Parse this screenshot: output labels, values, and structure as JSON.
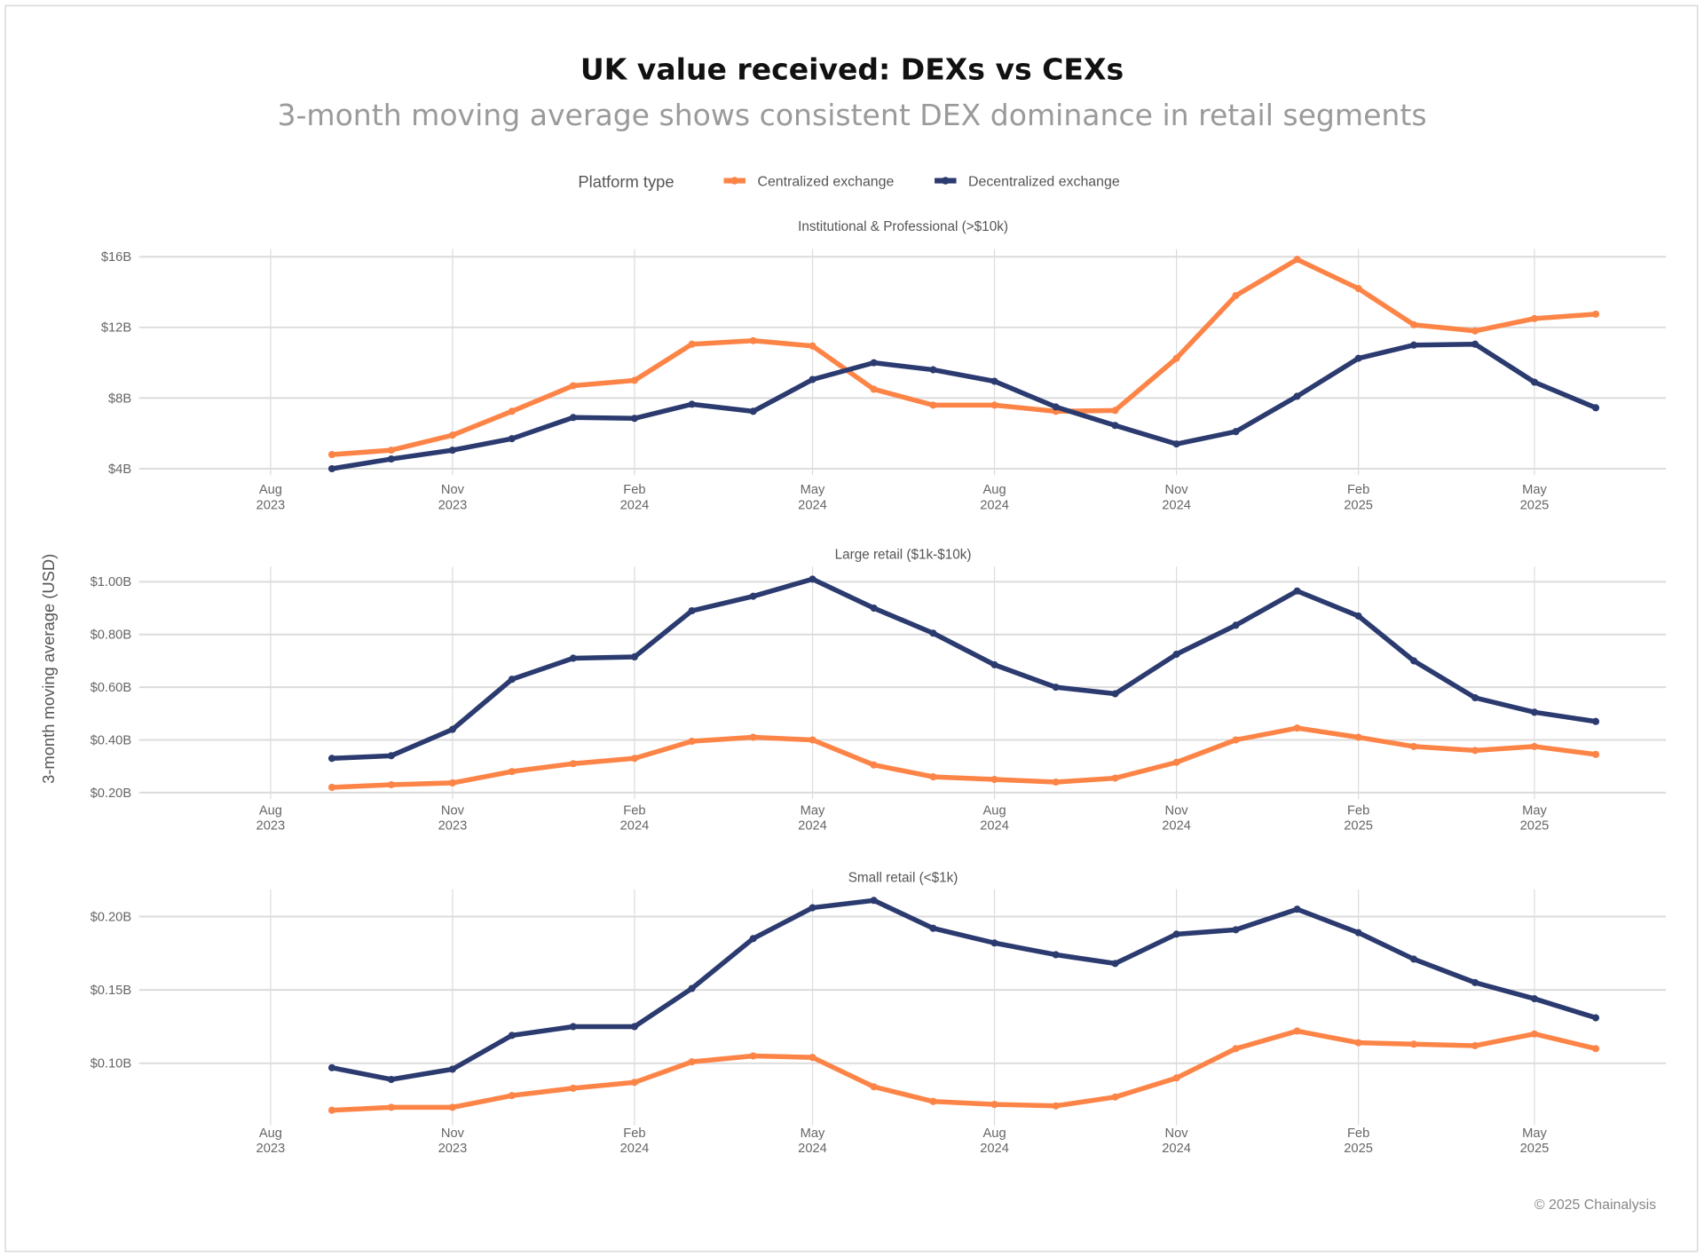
{
  "header": {
    "title": "UK value received: DEXs vs CEXs",
    "subtitle": "3-month moving average shows consistent DEX dominance in retail segments"
  },
  "legend": {
    "title": "Platform type",
    "items": [
      {
        "label": "Centralized exchange",
        "color": "#fd8447"
      },
      {
        "label": "Decentralized exchange",
        "color": "#2b3a6f"
      }
    ]
  },
  "ylabel": "3-month moving average (USD)",
  "credit": "© 2025 Chainalysis",
  "x_tick_labels": [
    {
      "month": "Aug",
      "year": "2023",
      "date": "2023-08-01"
    },
    {
      "month": "Nov",
      "year": "2023",
      "date": "2023-11-01"
    },
    {
      "month": "Feb",
      "year": "2024",
      "date": "2024-02-01"
    },
    {
      "month": "May",
      "year": "2024",
      "date": "2024-05-01"
    },
    {
      "month": "Aug",
      "year": "2024",
      "date": "2024-08-01"
    },
    {
      "month": "Nov",
      "year": "2024",
      "date": "2024-11-01"
    },
    {
      "month": "Feb",
      "year": "2025",
      "date": "2025-02-01"
    },
    {
      "month": "May",
      "year": "2025",
      "date": "2025-05-01"
    }
  ],
  "chart_data": [
    {
      "type": "line",
      "title": "Institutional & Professional (>$10k)",
      "x": [
        "2023-09",
        "2023-10",
        "2023-11",
        "2023-12",
        "2024-01",
        "2024-02",
        "2024-03",
        "2024-04",
        "2024-05",
        "2024-06",
        "2024-07",
        "2024-08",
        "2024-09",
        "2024-10",
        "2024-11",
        "2024-12",
        "2025-01",
        "2025-02",
        "2025-03",
        "2025-04",
        "2025-05",
        "2025-06"
      ],
      "unit": "B USD",
      "yticks": [
        {
          "value": 4,
          "label": "$4B"
        },
        {
          "value": 8,
          "label": "$8B"
        },
        {
          "value": 12,
          "label": "$12B"
        },
        {
          "value": 16,
          "label": "$16B"
        }
      ],
      "grid": true,
      "series": [
        {
          "name": "Centralized exchange",
          "values": [
            4.8,
            5.05,
            5.9,
            7.25,
            8.7,
            9.0,
            11.05,
            11.25,
            10.95,
            8.5,
            7.6,
            7.6,
            7.25,
            7.3,
            10.25,
            13.8,
            15.85,
            14.2,
            12.15,
            11.8,
            12.5,
            12.75
          ]
        },
        {
          "name": "Decentralized exchange",
          "values": [
            4.0,
            4.55,
            5.05,
            5.7,
            6.9,
            6.85,
            7.65,
            7.25,
            9.05,
            10.0,
            9.6,
            8.95,
            7.5,
            6.45,
            5.4,
            6.1,
            8.1,
            10.25,
            11.0,
            11.05,
            8.9,
            7.45
          ]
        }
      ]
    },
    {
      "type": "line",
      "title": "Large retail ($1k-$10k)",
      "x": [
        "2023-09",
        "2023-10",
        "2023-11",
        "2023-12",
        "2024-01",
        "2024-02",
        "2024-03",
        "2024-04",
        "2024-05",
        "2024-06",
        "2024-07",
        "2024-08",
        "2024-09",
        "2024-10",
        "2024-11",
        "2024-12",
        "2025-01",
        "2025-02",
        "2025-03",
        "2025-04",
        "2025-05",
        "2025-06"
      ],
      "unit": "B USD",
      "yticks": [
        {
          "value": 0.2,
          "label": "$0.20B"
        },
        {
          "value": 0.4,
          "label": "$0.40B"
        },
        {
          "value": 0.6,
          "label": "$0.60B"
        },
        {
          "value": 0.8,
          "label": "$0.80B"
        },
        {
          "value": 1.0,
          "label": "$1.00B"
        }
      ],
      "grid": true,
      "series": [
        {
          "name": "Centralized exchange",
          "values": [
            0.22,
            0.23,
            0.237,
            0.28,
            0.31,
            0.33,
            0.395,
            0.41,
            0.4,
            0.305,
            0.26,
            0.25,
            0.24,
            0.255,
            0.315,
            0.4,
            0.445,
            0.41,
            0.375,
            0.36,
            0.375,
            0.345
          ]
        },
        {
          "name": "Decentralized exchange",
          "values": [
            0.33,
            0.34,
            0.44,
            0.63,
            0.71,
            0.715,
            0.89,
            0.945,
            1.01,
            0.9,
            0.805,
            0.685,
            0.6,
            0.575,
            0.725,
            0.835,
            0.965,
            0.87,
            0.7,
            0.56,
            0.505,
            0.47
          ]
        }
      ]
    },
    {
      "type": "line",
      "title": "Small retail (<$1k)",
      "x": [
        "2023-09",
        "2023-10",
        "2023-11",
        "2023-12",
        "2024-01",
        "2024-02",
        "2024-03",
        "2024-04",
        "2024-05",
        "2024-06",
        "2024-07",
        "2024-08",
        "2024-09",
        "2024-10",
        "2024-11",
        "2024-12",
        "2025-01",
        "2025-02",
        "2025-03",
        "2025-04",
        "2025-05",
        "2025-06"
      ],
      "unit": "B USD",
      "yticks": [
        {
          "value": 0.1,
          "label": "$0.10B"
        },
        {
          "value": 0.15,
          "label": "$0.15B"
        },
        {
          "value": 0.2,
          "label": "$0.20B"
        }
      ],
      "grid": true,
      "series": [
        {
          "name": "Centralized exchange",
          "values": [
            0.068,
            0.07,
            0.07,
            0.078,
            0.083,
            0.087,
            0.101,
            0.105,
            0.104,
            0.084,
            0.074,
            0.072,
            0.071,
            0.077,
            0.09,
            0.11,
            0.122,
            0.114,
            0.113,
            0.112,
            0.12,
            0.11
          ]
        },
        {
          "name": "Decentralized exchange",
          "values": [
            0.097,
            0.089,
            0.096,
            0.119,
            0.125,
            0.125,
            0.151,
            0.185,
            0.206,
            0.211,
            0.192,
            0.182,
            0.174,
            0.168,
            0.188,
            0.191,
            0.205,
            0.189,
            0.171,
            0.155,
            0.144,
            0.131
          ]
        }
      ]
    }
  ]
}
